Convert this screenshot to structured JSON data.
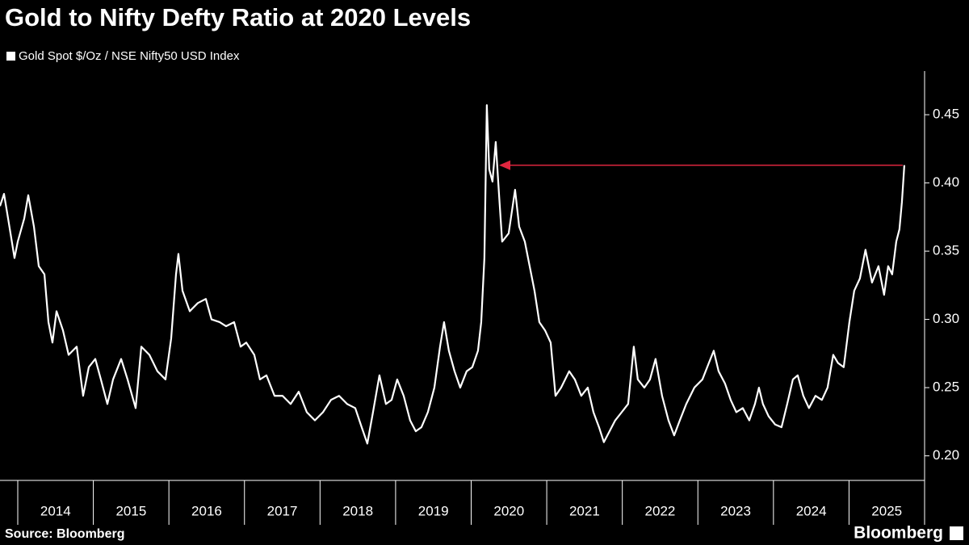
{
  "chart_data": {
    "type": "line",
    "title": "Gold to Nifty Defty Ratio at 2020 Levels",
    "source": "Source: Bloomberg",
    "logo": "Bloomberg",
    "x": [
      2013.765,
      2013.818,
      2013.872,
      2013.957,
      2014.0,
      2014.086,
      2014.139,
      2014.214,
      2014.278,
      2014.353,
      2014.406,
      2014.459,
      2014.513,
      2014.598,
      2014.673,
      2014.78,
      2014.865,
      2014.94,
      2015.026,
      2015.1,
      2015.186,
      2015.261,
      2015.368,
      2015.453,
      2015.56,
      2015.635,
      2015.742,
      2015.848,
      2015.955,
      2016.03,
      2016.094,
      2016.126,
      2016.18,
      2016.276,
      2016.383,
      2016.489,
      2016.564,
      2016.671,
      2016.757,
      2016.863,
      2016.949,
      2017.024,
      2017.13,
      2017.205,
      2017.291,
      2017.398,
      2017.504,
      2017.611,
      2017.718,
      2017.825,
      2017.932,
      2018.039,
      2018.145,
      2018.252,
      2018.359,
      2018.466,
      2018.551,
      2018.626,
      2018.701,
      2018.786,
      2018.872,
      2018.947,
      2019.021,
      2019.107,
      2019.192,
      2019.267,
      2019.342,
      2019.427,
      2019.513,
      2019.588,
      2019.641,
      2019.705,
      2019.78,
      2019.855,
      2019.94,
      2020.015,
      2020.09,
      2020.133,
      2020.175,
      2020.207,
      2020.239,
      2020.282,
      2020.325,
      2020.368,
      2020.41,
      2020.496,
      2020.581,
      2020.635,
      2020.71,
      2020.774,
      2020.838,
      2020.902,
      2020.977,
      2021.052,
      2021.116,
      2021.19,
      2021.297,
      2021.372,
      2021.457,
      2021.543,
      2021.618,
      2021.692,
      2021.756,
      2021.831,
      2021.906,
      2021.992,
      2022.077,
      2022.152,
      2022.205,
      2022.291,
      2022.366,
      2022.44,
      2022.526,
      2022.611,
      2022.686,
      2022.761,
      2022.846,
      2022.953,
      2023.06,
      2023.145,
      2023.21,
      2023.274,
      2023.359,
      2023.434,
      2023.509,
      2023.594,
      2023.68,
      2023.755,
      2023.808,
      2023.861,
      2023.936,
      2024.022,
      2024.107,
      2024.182,
      2024.257,
      2024.321,
      2024.395,
      2024.47,
      2024.556,
      2024.641,
      2024.716,
      2024.791,
      2024.855,
      2024.93,
      2025.005,
      2025.069,
      2025.144,
      2025.218,
      2025.304,
      2025.39,
      2025.464,
      2025.518,
      2025.571,
      2025.625,
      2025.667,
      2025.7,
      2025.732
    ],
    "series": [
      {
        "name": "Gold Spot $/Oz / NSE Nifty50 USD Index",
        "color": "#ffffff",
        "values": [
          0.383,
          0.392,
          0.374,
          0.345,
          0.357,
          0.374,
          0.391,
          0.368,
          0.339,
          0.333,
          0.298,
          0.283,
          0.306,
          0.292,
          0.274,
          0.28,
          0.244,
          0.265,
          0.271,
          0.256,
          0.238,
          0.256,
          0.271,
          0.256,
          0.235,
          0.28,
          0.274,
          0.262,
          0.256,
          0.286,
          0.333,
          0.348,
          0.321,
          0.306,
          0.312,
          0.315,
          0.3,
          0.298,
          0.295,
          0.298,
          0.28,
          0.283,
          0.274,
          0.256,
          0.259,
          0.244,
          0.244,
          0.238,
          0.247,
          0.232,
          0.226,
          0.232,
          0.241,
          0.244,
          0.238,
          0.235,
          0.221,
          0.209,
          0.232,
          0.259,
          0.238,
          0.241,
          0.256,
          0.244,
          0.226,
          0.218,
          0.221,
          0.232,
          0.25,
          0.28,
          0.298,
          0.277,
          0.262,
          0.25,
          0.262,
          0.265,
          0.277,
          0.298,
          0.345,
          0.457,
          0.41,
          0.401,
          0.43,
          0.392,
          0.357,
          0.363,
          0.395,
          0.368,
          0.357,
          0.339,
          0.321,
          0.298,
          0.292,
          0.283,
          0.244,
          0.25,
          0.262,
          0.256,
          0.244,
          0.25,
          0.232,
          0.221,
          0.21,
          0.218,
          0.226,
          0.232,
          0.238,
          0.28,
          0.256,
          0.25,
          0.256,
          0.271,
          0.244,
          0.226,
          0.215,
          0.226,
          0.238,
          0.25,
          0.256,
          0.268,
          0.277,
          0.262,
          0.253,
          0.241,
          0.232,
          0.235,
          0.226,
          0.238,
          0.25,
          0.238,
          0.229,
          0.223,
          0.221,
          0.238,
          0.256,
          0.259,
          0.244,
          0.235,
          0.244,
          0.241,
          0.25,
          0.274,
          0.268,
          0.265,
          0.298,
          0.321,
          0.33,
          0.351,
          0.327,
          0.339,
          0.318,
          0.339,
          0.333,
          0.357,
          0.366,
          0.386,
          0.413
        ]
      }
    ],
    "xlim": [
      2013.765,
      2026
    ],
    "xticks": [
      2014,
      2015,
      2016,
      2017,
      2018,
      2019,
      2020,
      2021,
      2022,
      2023,
      2024,
      2025
    ],
    "ylim": [
      0.182,
      0.482
    ],
    "yticks": [
      {
        "value": 0.2,
        "label": "0.20"
      },
      {
        "value": 0.25,
        "label": "0.25"
      },
      {
        "value": 0.3,
        "label": "0.30"
      },
      {
        "value": 0.35,
        "label": "0.35"
      },
      {
        "value": 0.4,
        "label": "0.40"
      },
      {
        "value": 0.45,
        "label": "0.45"
      }
    ],
    "annotation_color": "#e0263f"
  }
}
